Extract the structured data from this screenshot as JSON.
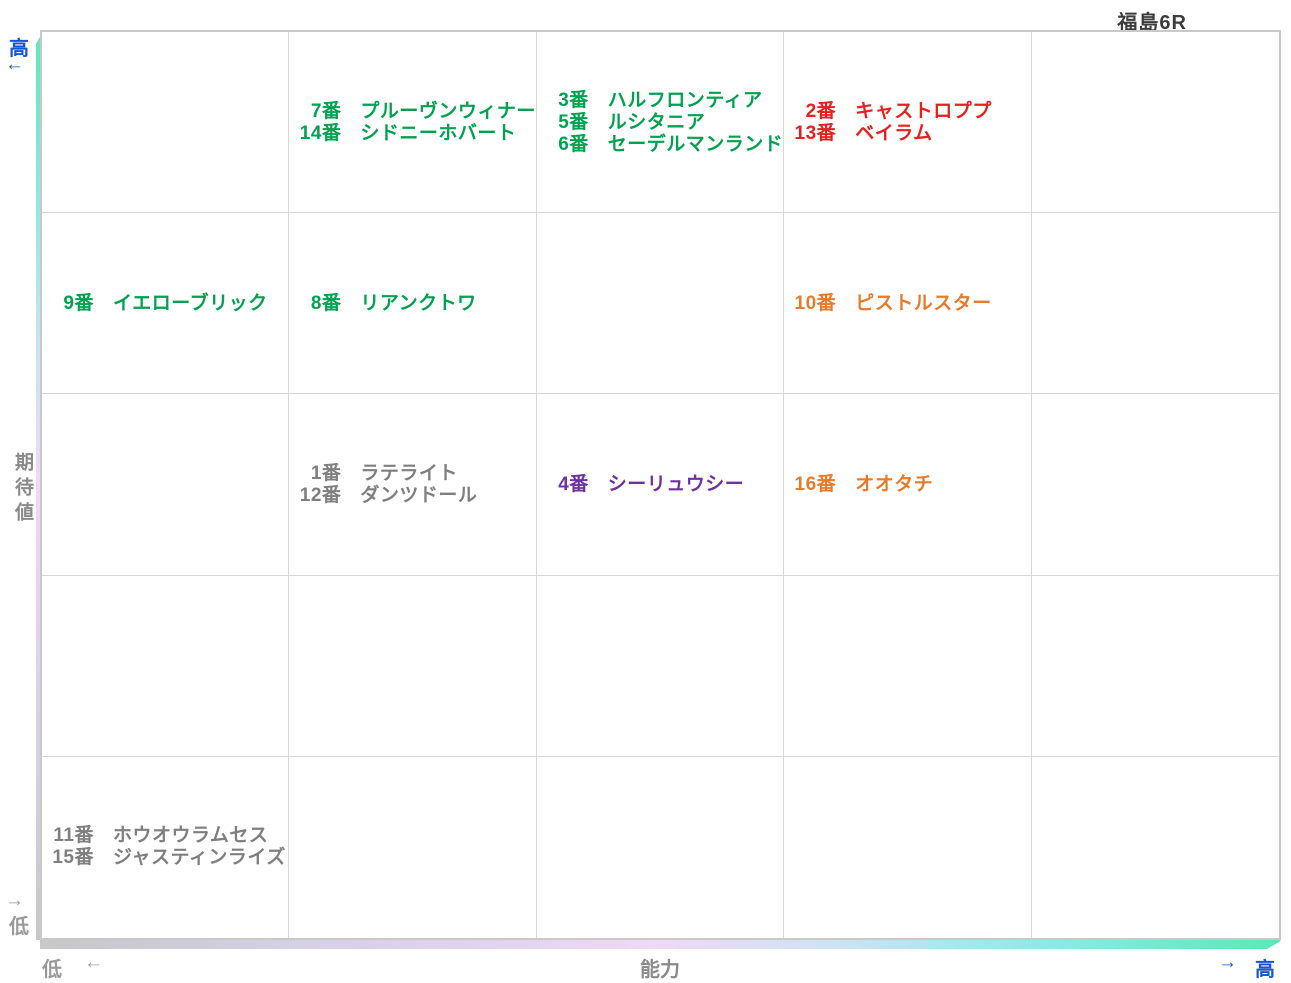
{
  "title": "福島6R",
  "y_axis": {
    "label": "期待値",
    "high": "高",
    "high_arrow": "←",
    "low_arrow": "→",
    "low": "低"
  },
  "x_axis": {
    "label": "能力",
    "low": "低",
    "low_arrow": "←",
    "high_arrow": "→",
    "high": "高"
  },
  "palette": {
    "green": "#00a24f",
    "red": "#e62020",
    "orange": "#e87b2a",
    "purple": "#7031a0",
    "gray": "#7f7f7f",
    "axis_blue": "#1356d0",
    "axis_gray": "#8a8a8a",
    "grid_line": "#d7d7d7",
    "bar_mint": "#58e9b5",
    "bar_cyan": "#8ce9e6",
    "bar_lavender": "#f0d9f4",
    "bar_silver": "#c7c7c7"
  },
  "chart_data": {
    "type": "scatter",
    "title": "福島6R",
    "xlabel": "能力",
    "ylabel": "期待値",
    "x_range_labels": [
      "低",
      "高"
    ],
    "y_range_labels": [
      "低",
      "高"
    ],
    "grid": {
      "cols": 5,
      "rows": 5,
      "gridlines": true
    },
    "points": [
      {
        "row": 1,
        "col": 2,
        "color": "green",
        "entries": [
          {
            "num": "7番",
            "name": "プルーヴンウィナー"
          },
          {
            "num": "14番",
            "name": "シドニーホバート"
          }
        ]
      },
      {
        "row": 1,
        "col": 3,
        "color": "green",
        "entries": [
          {
            "num": "3番",
            "name": "ハルフロンティア"
          },
          {
            "num": "5番",
            "name": "ルシタニア"
          },
          {
            "num": "6番",
            "name": "セーデルマンランド"
          }
        ]
      },
      {
        "row": 1,
        "col": 4,
        "color": "red",
        "entries": [
          {
            "num": "2番",
            "name": "キャストロププ"
          },
          {
            "num": "13番",
            "name": "ベイラム"
          }
        ]
      },
      {
        "row": 2,
        "col": 1,
        "color": "green",
        "entries": [
          {
            "num": "9番",
            "name": "イエローブリック"
          }
        ]
      },
      {
        "row": 2,
        "col": 2,
        "color": "green",
        "entries": [
          {
            "num": "8番",
            "name": "リアンクトワ"
          }
        ]
      },
      {
        "row": 2,
        "col": 4,
        "color": "orange",
        "entries": [
          {
            "num": "10番",
            "name": "ピストルスター"
          }
        ]
      },
      {
        "row": 3,
        "col": 2,
        "color": "gray",
        "entries": [
          {
            "num": "1番",
            "name": "ラテライト"
          },
          {
            "num": "12番",
            "name": "ダンツドール"
          }
        ]
      },
      {
        "row": 3,
        "col": 3,
        "color": "purple",
        "entries": [
          {
            "num": "4番",
            "name": "シーリュウシー"
          }
        ]
      },
      {
        "row": 3,
        "col": 4,
        "color": "orange",
        "entries": [
          {
            "num": "16番",
            "name": "オオタチ"
          }
        ]
      },
      {
        "row": 5,
        "col": 1,
        "color": "gray",
        "entries": [
          {
            "num": "11番",
            "name": "ホウオウラムセス"
          },
          {
            "num": "15番",
            "name": "ジャスティンライズ"
          }
        ]
      }
    ]
  }
}
